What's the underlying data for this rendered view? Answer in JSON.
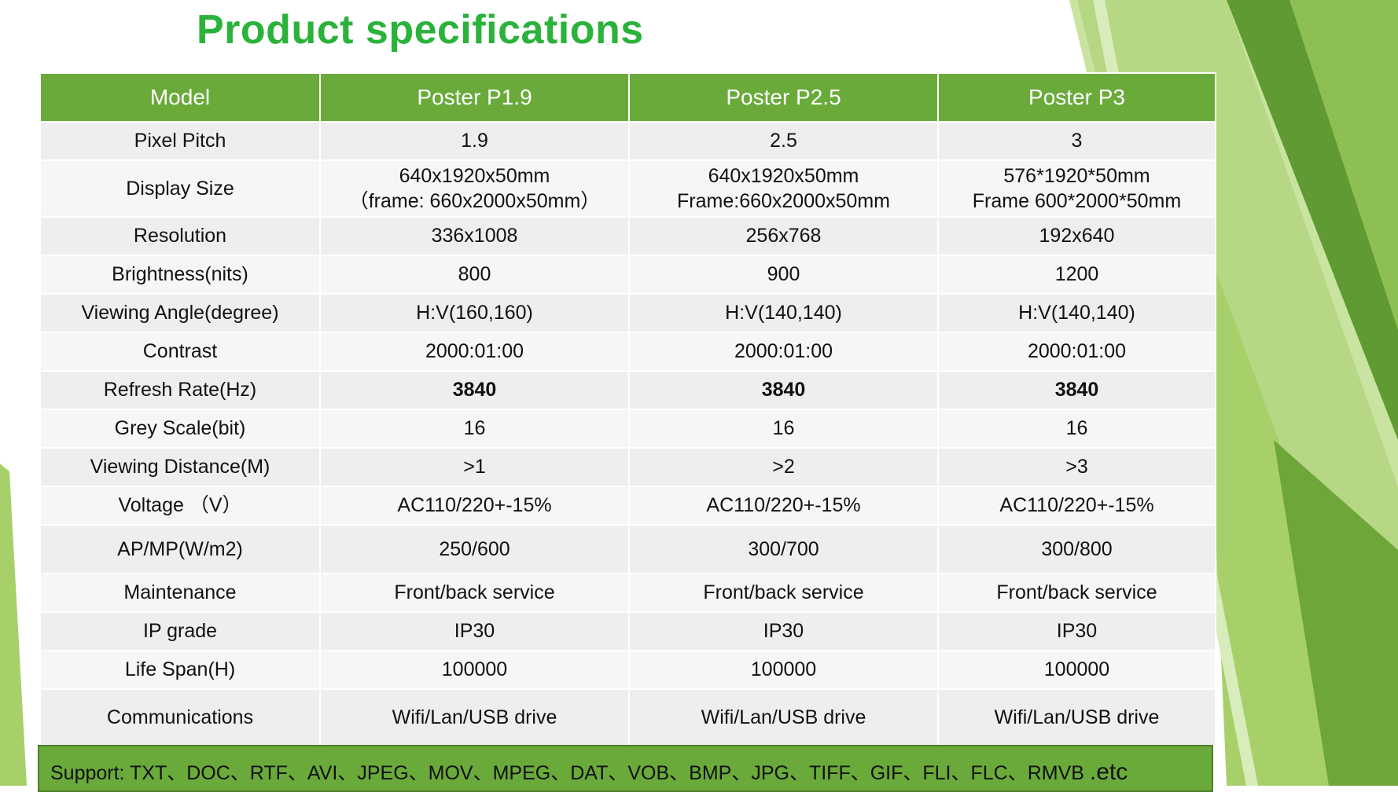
{
  "title": "Product specifications",
  "table": {
    "headers": [
      "Model",
      "Poster P1.9",
      "Poster P2.5",
      "Poster P3"
    ],
    "rows": [
      {
        "label": "Pixel Pitch",
        "values": [
          [
            "1.9"
          ],
          [
            "2.5"
          ],
          [
            "3"
          ]
        ]
      },
      {
        "label": "Display Size",
        "values": [
          [
            "640x1920x50mm",
            "（frame: 660x2000x50mm）"
          ],
          [
            "640x1920x50mm",
            "Frame:660x2000x50mm"
          ],
          [
            "576*1920*50mm",
            "Frame 600*2000*50mm"
          ]
        ]
      },
      {
        "label": "Resolution",
        "values": [
          [
            "336x1008"
          ],
          [
            "256x768"
          ],
          [
            "192x640"
          ]
        ]
      },
      {
        "label": "Brightness(nits)",
        "values": [
          [
            "800"
          ],
          [
            "900"
          ],
          [
            "1200"
          ]
        ]
      },
      {
        "label": "Viewing Angle(degree)",
        "values": [
          [
            "H:V(160,160)"
          ],
          [
            "H:V(140,140)"
          ],
          [
            "H:V(140,140)"
          ]
        ]
      },
      {
        "label": "Contrast",
        "values": [
          [
            "2000:01:00"
          ],
          [
            "2000:01:00"
          ],
          [
            "2000:01:00"
          ]
        ]
      },
      {
        "label": "Refresh Rate(Hz)",
        "bold": true,
        "values": [
          [
            "3840"
          ],
          [
            "3840"
          ],
          [
            "3840"
          ]
        ]
      },
      {
        "label": "Grey Scale(bit)",
        "values": [
          [
            "16"
          ],
          [
            "16"
          ],
          [
            "16"
          ]
        ]
      },
      {
        "label": "Viewing Distance(M)",
        "values": [
          [
            ">1"
          ],
          [
            ">2"
          ],
          [
            ">3"
          ]
        ]
      },
      {
        "label": "Voltage （V）",
        "values": [
          [
            "AC110/220+-15%"
          ],
          [
            "AC110/220+-15%"
          ],
          [
            "AC110/220+-15%"
          ]
        ]
      },
      {
        "label": "AP/MP(W/m2)",
        "values": [
          [
            "250/600"
          ],
          [
            "300/700"
          ],
          [
            "300/800"
          ]
        ]
      },
      {
        "label": "Maintenance",
        "values": [
          [
            "Front/back service"
          ],
          [
            "Front/back service"
          ],
          [
            "Front/back service"
          ]
        ]
      },
      {
        "label": "IP grade",
        "values": [
          [
            "IP30"
          ],
          [
            "IP30"
          ],
          [
            "IP30"
          ]
        ]
      },
      {
        "label": "Life Span(H)",
        "values": [
          [
            "100000"
          ],
          [
            "100000"
          ],
          [
            "100000"
          ]
        ]
      },
      {
        "label": "Communications",
        "values": [
          [
            "Wifi/Lan/USB drive"
          ],
          [
            "Wifi/Lan/USB drive"
          ],
          [
            "Wifi/Lan/USB drive"
          ]
        ]
      }
    ]
  },
  "support": {
    "text": "Support: TXT、DOC、RTF、AVI、JPEG、MOV、MPEG、DAT、VOB、BMP、JPG、TIFF、GIF、FLI、FLC、RMVB ",
    "etc": ".etc"
  },
  "colors": {
    "title": "#2bb23a",
    "header_fill": "#6aaa3a",
    "row_odd": "#eeeeee",
    "row_even": "#f6f6f6",
    "support_fill": "#6aaa3a"
  }
}
